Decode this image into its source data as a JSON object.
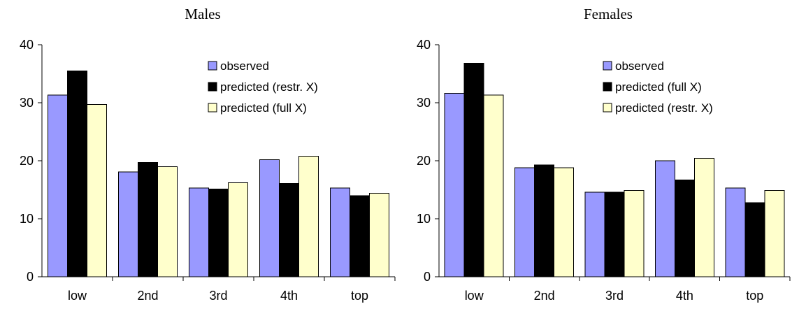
{
  "chart_data": [
    {
      "type": "bar",
      "title": "Males",
      "xlabel": "",
      "ylabel": "",
      "categories": [
        "low",
        "2nd",
        "3rd",
        "4th",
        "top"
      ],
      "ylim": [
        0,
        40
      ],
      "yticks": [
        0,
        10,
        20,
        30,
        40
      ],
      "grid": false,
      "legend": "top-right",
      "series": [
        {
          "name": "observed",
          "color": "#9999ff",
          "values": [
            31.3,
            18.1,
            15.3,
            20.2,
            15.3
          ]
        },
        {
          "name": "predicted (restr. X)",
          "color": "#000000",
          "values": [
            35.5,
            19.7,
            15.1,
            16.1,
            14.0
          ]
        },
        {
          "name": "predicted (full X)",
          "color": "#ffffcc",
          "values": [
            29.7,
            19.0,
            16.2,
            20.8,
            14.4
          ]
        }
      ]
    },
    {
      "type": "bar",
      "title": "Females",
      "xlabel": "",
      "ylabel": "",
      "categories": [
        "low",
        "2nd",
        "3rd",
        "4th",
        "top"
      ],
      "ylim": [
        0,
        40
      ],
      "yticks": [
        0,
        10,
        20,
        30,
        40
      ],
      "grid": false,
      "legend": "top-right",
      "series": [
        {
          "name": "observed",
          "color": "#9999ff",
          "values": [
            31.6,
            18.8,
            14.6,
            20.0,
            15.3
          ]
        },
        {
          "name": "predicted (full X)",
          "color": "#000000",
          "values": [
            36.8,
            19.3,
            14.6,
            16.7,
            12.8
          ]
        },
        {
          "name": "predicted (restr. X)",
          "color": "#ffffcc",
          "values": [
            31.3,
            18.8,
            14.9,
            20.4,
            14.9
          ]
        }
      ]
    }
  ]
}
